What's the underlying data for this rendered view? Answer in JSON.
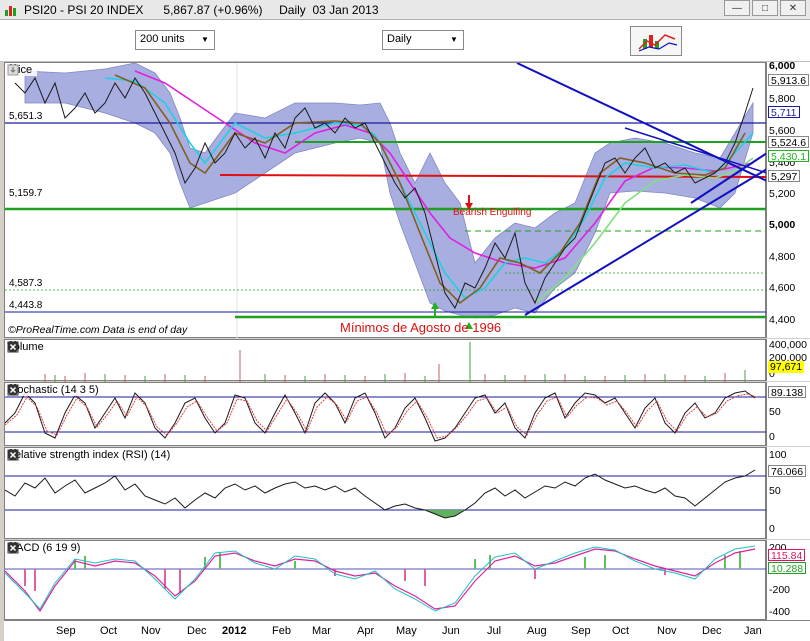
{
  "titlebar": {
    "text": "PSI20 - PSI 20 INDEX      5,867.87 (+0.96%)     Daily  03 Jan 2013"
  },
  "toolbar": {
    "units_dropdown": "200 units",
    "period_dropdown": "Daily"
  },
  "price_panel": {
    "title": "Price",
    "left_levels": [
      "5,651.3",
      "5,159.7",
      "4,587.3",
      "4,443.8"
    ],
    "axis_ticks": [
      "6,000",
      "5,800",
      "5,600",
      "5,400",
      "5,200",
      "5,000",
      "4,800",
      "4,600",
      "4,400"
    ],
    "axis_tags": [
      "5,913.6",
      "5,711",
      "5,524.6",
      "5,430.1",
      "5,297"
    ],
    "annotation_bearish": "Bearish Engulfing",
    "annotation_minimos": "Mínimos de Agosto de 1996",
    "credit": "©ProRealTime.com  Data is end of day"
  },
  "volume_panel": {
    "title": "Volume",
    "axis_ticks": [
      "400,000",
      "200,000",
      "0"
    ],
    "axis_tag": "97,671"
  },
  "stochastic_panel": {
    "title": "Stochastic (14 3 5)",
    "axis_ticks": [
      "100",
      "50",
      "0"
    ],
    "axis_tag": "89.138"
  },
  "rsi_panel": {
    "title": "Relative strength index (RSI) (14)",
    "axis_ticks": [
      "100",
      "50",
      "0"
    ],
    "axis_tag": "76.066"
  },
  "macd_panel": {
    "title": "MACD (6 19 9)",
    "axis_ticks": [
      "200",
      "0",
      "-200",
      "-400"
    ],
    "axis_tags": [
      "115.84",
      "10.288"
    ]
  },
  "xaxis": {
    "labels": [
      "Sep",
      "Oct",
      "Nov",
      "Dec",
      "2012",
      "Feb",
      "Mar",
      "Apr",
      "May",
      "Jun",
      "Jul",
      "Aug",
      "Sep",
      "Oct",
      "Nov",
      "Dec",
      "Jan"
    ]
  },
  "colors": {
    "band_fill": "#a9aee0",
    "price_line": "#1a1a1a",
    "ma_magenta": "#e020e0",
    "ma_cyan": "#20d0e0",
    "ma_brown": "#806020",
    "ma_green": "#80e080",
    "level_green": "#20a020",
    "level_red": "#e01010",
    "level_blue": "#1a1aa0",
    "trend_blue": "#1010c0",
    "tag_yellow": "#ffff00"
  }
}
